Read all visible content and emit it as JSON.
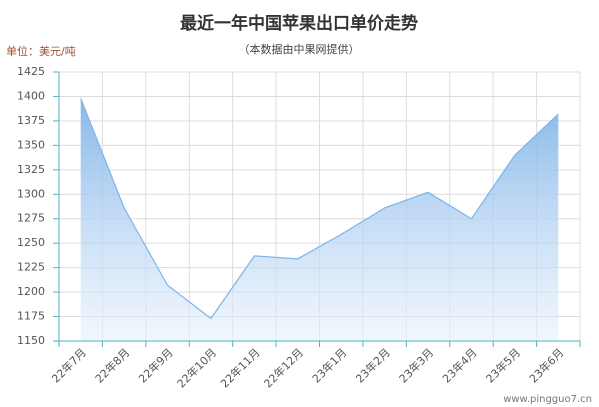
{
  "chart_data": {
    "type": "area",
    "title": "最近一年中国苹果出口单价走势",
    "subtitle": "（本数据由中果网提供）",
    "y_label": "单位：美元/吨",
    "watermark": "www.pingguo7.cn",
    "categories": [
      "22年7月",
      "22年8月",
      "22年9月",
      "22年10月",
      "22年11月",
      "22年12月",
      "23年1月",
      "23年2月",
      "23年3月",
      "23年4月",
      "23年5月",
      "23年6月"
    ],
    "values": [
      1398,
      1286,
      1207,
      1173,
      1237,
      1234,
      1259,
      1286,
      1302,
      1275,
      1340,
      1382
    ],
    "color": "#7fb3e8",
    "ylim": [
      1150,
      1425
    ],
    "yticks": [
      1150,
      1175,
      1200,
      1225,
      1250,
      1275,
      1300,
      1325,
      1350,
      1375,
      1400,
      1425
    ],
    "grid": true
  }
}
